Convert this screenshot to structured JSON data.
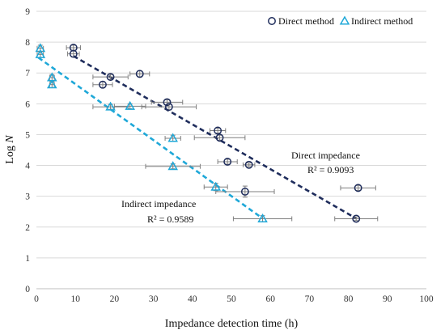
{
  "chart_data": {
    "type": "scatter",
    "xlabel": "Impedance detection time (h)",
    "ylabel": {
      "prefix": "Log ",
      "italic": "N"
    },
    "xlim": [
      0,
      100
    ],
    "ylim": [
      0,
      9
    ],
    "xticks": [
      0,
      10,
      20,
      30,
      40,
      50,
      60,
      70,
      80,
      90,
      100
    ],
    "yticks": [
      0,
      1,
      2,
      3,
      4,
      5,
      6,
      7,
      8,
      9
    ],
    "grid": "horizontal",
    "legend_position": "top-right",
    "series": [
      {
        "name": "Direct method",
        "marker": "circle",
        "color": "#1f2d5c",
        "points": [
          {
            "x": 9.5,
            "y": 7.82,
            "xerr": 1.8,
            "yerr": 0.08
          },
          {
            "x": 9.5,
            "y": 7.62,
            "xerr": 1.5,
            "yerr": 0.1
          },
          {
            "x": 19.0,
            "y": 6.87,
            "xerr": 4.5,
            "yerr": 0.08
          },
          {
            "x": 26.5,
            "y": 6.97,
            "xerr": 2.5,
            "yerr": 0.1
          },
          {
            "x": 17.0,
            "y": 6.62,
            "xerr": 2.5,
            "yerr": 0.1
          },
          {
            "x": 33.5,
            "y": 6.05,
            "xerr": 4.0,
            "yerr": 0.08
          },
          {
            "x": 34.0,
            "y": 5.9,
            "xerr": 7.0,
            "yerr": 0.1
          },
          {
            "x": 46.5,
            "y": 5.13,
            "xerr": 2.0,
            "yerr": 0.08
          },
          {
            "x": 47.0,
            "y": 4.9,
            "xerr": 6.5,
            "yerr": 0.08
          },
          {
            "x": 49.0,
            "y": 4.12,
            "xerr": 2.5,
            "yerr": 0.08
          },
          {
            "x": 54.5,
            "y": 4.02,
            "xerr": 1.5,
            "yerr": 0.06
          },
          {
            "x": 82.5,
            "y": 3.27,
            "xerr": 4.5,
            "yerr": 0.08
          },
          {
            "x": 53.5,
            "y": 3.15,
            "xerr": 7.5,
            "yerr": 0.18
          },
          {
            "x": 82.0,
            "y": 2.27,
            "xerr": 5.5,
            "yerr": 0.06
          }
        ]
      },
      {
        "name": "Indirect method",
        "marker": "triangle",
        "color": "#1fa8d8",
        "points": [
          {
            "x": 1.0,
            "y": 7.8,
            "xerr": 0.8,
            "yerr": 0.1
          },
          {
            "x": 1.0,
            "y": 7.6,
            "xerr": 0.8,
            "yerr": 0.1
          },
          {
            "x": 4.0,
            "y": 6.85,
            "xerr": 0.6,
            "yerr": 0.1
          },
          {
            "x": 4.0,
            "y": 6.62,
            "xerr": 0.6,
            "yerr": 0.1
          },
          {
            "x": 19.0,
            "y": 5.9,
            "xerr": 4.5,
            "yerr": 0.08
          },
          {
            "x": 24.0,
            "y": 5.92,
            "xerr": 4.0,
            "yerr": 0.08
          },
          {
            "x": 35.0,
            "y": 4.88,
            "xerr": 2.0,
            "yerr": 0.1
          },
          {
            "x": 35.0,
            "y": 3.97,
            "xerr": 7.0,
            "yerr": 0.08
          },
          {
            "x": 46.0,
            "y": 3.3,
            "xerr": 3.0,
            "yerr": 0.12
          },
          {
            "x": 58.0,
            "y": 2.27,
            "xerr": 7.5,
            "yerr": 0.1
          }
        ]
      }
    ],
    "trendlines": [
      {
        "series": "Direct method",
        "color": "#1f2d5c",
        "x_start": 9.5,
        "y_start": 7.55,
        "x_end": 82.0,
        "y_end": 2.28,
        "label": "Direct impedance",
        "r2": "R² = 0.9093"
      },
      {
        "series": "Indirect method",
        "color": "#1fa8d8",
        "x_start": 0.5,
        "y_start": 7.5,
        "x_end": 58.0,
        "y_end": 2.28,
        "label": "Indirect impedance",
        "r2": "R² = 0.9589"
      }
    ]
  }
}
